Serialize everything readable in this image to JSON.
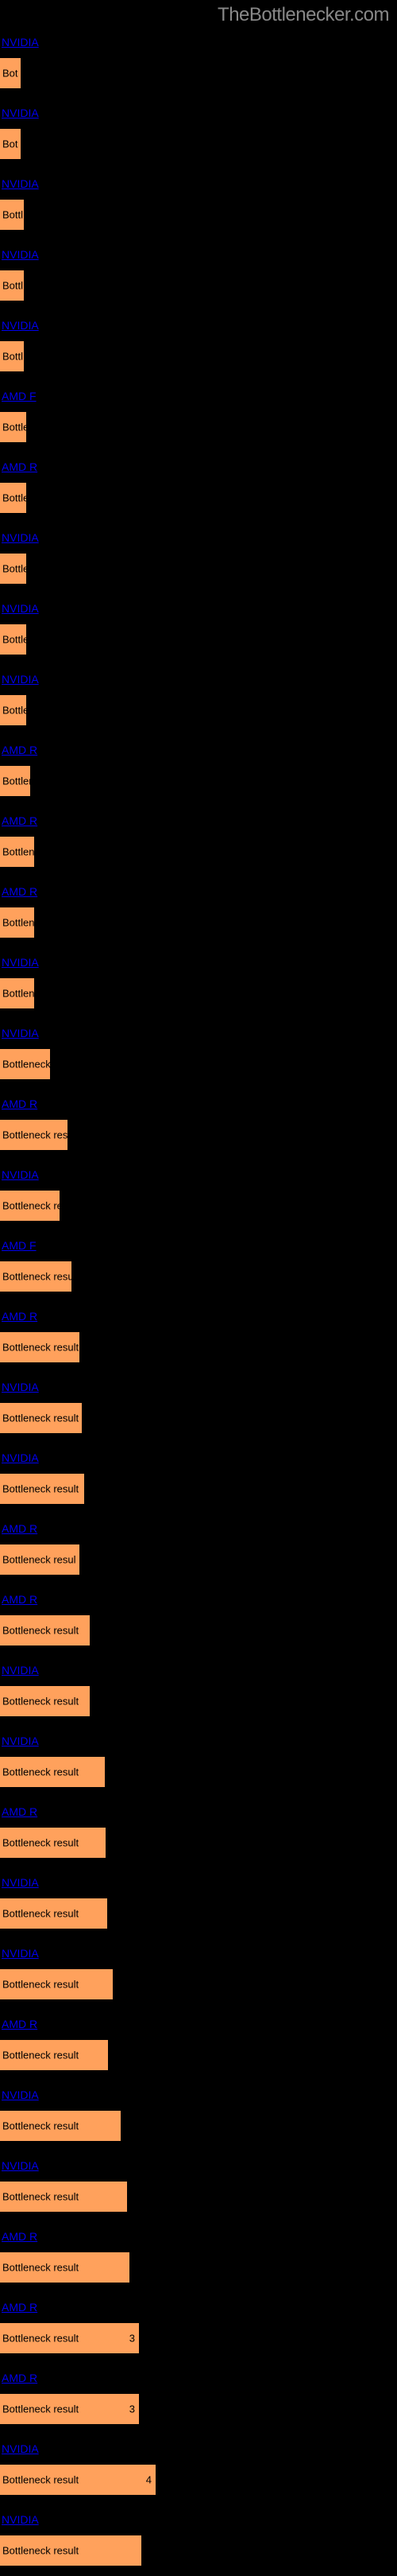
{
  "watermark": "TheBottlenecker.com",
  "chart": {
    "type": "bar",
    "bar_color": "#ffa15c",
    "background_color": "#000000",
    "link_color": "#0000ee",
    "text_color": "#000000",
    "max_width": 500,
    "bars": [
      {
        "link": "NVIDIA",
        "label": "Bot",
        "width": 26,
        "value": ""
      },
      {
        "link": "NVIDIA",
        "label": "Bot",
        "width": 26,
        "value": ""
      },
      {
        "link": "NVIDIA",
        "label": "Bottl",
        "width": 30,
        "value": ""
      },
      {
        "link": "NVIDIA",
        "label": "Bottl",
        "width": 30,
        "value": ""
      },
      {
        "link": "NVIDIA",
        "label": "Bottl",
        "width": 30,
        "value": ""
      },
      {
        "link": "AMD F",
        "label": "Bottle",
        "width": 33,
        "value": ""
      },
      {
        "link": "AMD R",
        "label": "Bottle",
        "width": 33,
        "value": ""
      },
      {
        "link": "NVIDIA",
        "label": "Bottle",
        "width": 33,
        "value": ""
      },
      {
        "link": "NVIDIA",
        "label": "Bottle",
        "width": 33,
        "value": ""
      },
      {
        "link": "NVIDIA",
        "label": "Bottle",
        "width": 33,
        "value": ""
      },
      {
        "link": "AMD R",
        "label": "Bottler",
        "width": 38,
        "value": ""
      },
      {
        "link": "AMD R",
        "label": "Bottlene",
        "width": 43,
        "value": ""
      },
      {
        "link": "AMD R",
        "label": "Bottlene",
        "width": 43,
        "value": ""
      },
      {
        "link": "NVIDIA",
        "label": "Bottlene",
        "width": 43,
        "value": ""
      },
      {
        "link": "NVIDIA",
        "label": "Bottleneck r",
        "width": 63,
        "value": ""
      },
      {
        "link": "AMD R",
        "label": "Bottleneck result",
        "width": 85,
        "value": ""
      },
      {
        "link": "NVIDIA",
        "label": "Bottleneck res",
        "width": 75,
        "value": ""
      },
      {
        "link": "AMD F",
        "label": "Bottleneck result",
        "width": 90,
        "value": ""
      },
      {
        "link": "AMD R",
        "label": "Bottleneck result",
        "width": 100,
        "value": ""
      },
      {
        "link": "NVIDIA",
        "label": "Bottleneck result",
        "width": 103,
        "value": ""
      },
      {
        "link": "NVIDIA",
        "label": "Bottleneck result",
        "width": 106,
        "value": ""
      },
      {
        "link": "AMD R",
        "label": "Bottleneck resul",
        "width": 100,
        "value": ""
      },
      {
        "link": "AMD R",
        "label": "Bottleneck result",
        "width": 113,
        "value": ""
      },
      {
        "link": "NVIDIA",
        "label": "Bottleneck result",
        "width": 113,
        "value": ""
      },
      {
        "link": "NVIDIA",
        "label": "Bottleneck result",
        "width": 132,
        "value": ""
      },
      {
        "link": "AMD R",
        "label": "Bottleneck result",
        "width": 133,
        "value": ""
      },
      {
        "link": "NVIDIA",
        "label": "Bottleneck result",
        "width": 135,
        "value": ""
      },
      {
        "link": "NVIDIA",
        "label": "Bottleneck result",
        "width": 142,
        "value": ""
      },
      {
        "link": "AMD R",
        "label": "Bottleneck result",
        "width": 136,
        "value": ""
      },
      {
        "link": "NVIDIA",
        "label": "Bottleneck result",
        "width": 152,
        "value": ""
      },
      {
        "link": "NVIDIA",
        "label": "Bottleneck result",
        "width": 160,
        "value": ""
      },
      {
        "link": "AMD R",
        "label": "Bottleneck result",
        "width": 163,
        "value": ""
      },
      {
        "link": "AMD R",
        "label": "Bottleneck result",
        "width": 175,
        "value_inside": "3"
      },
      {
        "link": "AMD R",
        "label": "Bottleneck result",
        "width": 175,
        "value_inside": "3"
      },
      {
        "link": "NVIDIA",
        "label": "Bottleneck result",
        "width": 196,
        "value_inside": "4"
      },
      {
        "link": "NVIDIA",
        "label": "Bottleneck result",
        "width": 178,
        "value": ""
      }
    ]
  }
}
